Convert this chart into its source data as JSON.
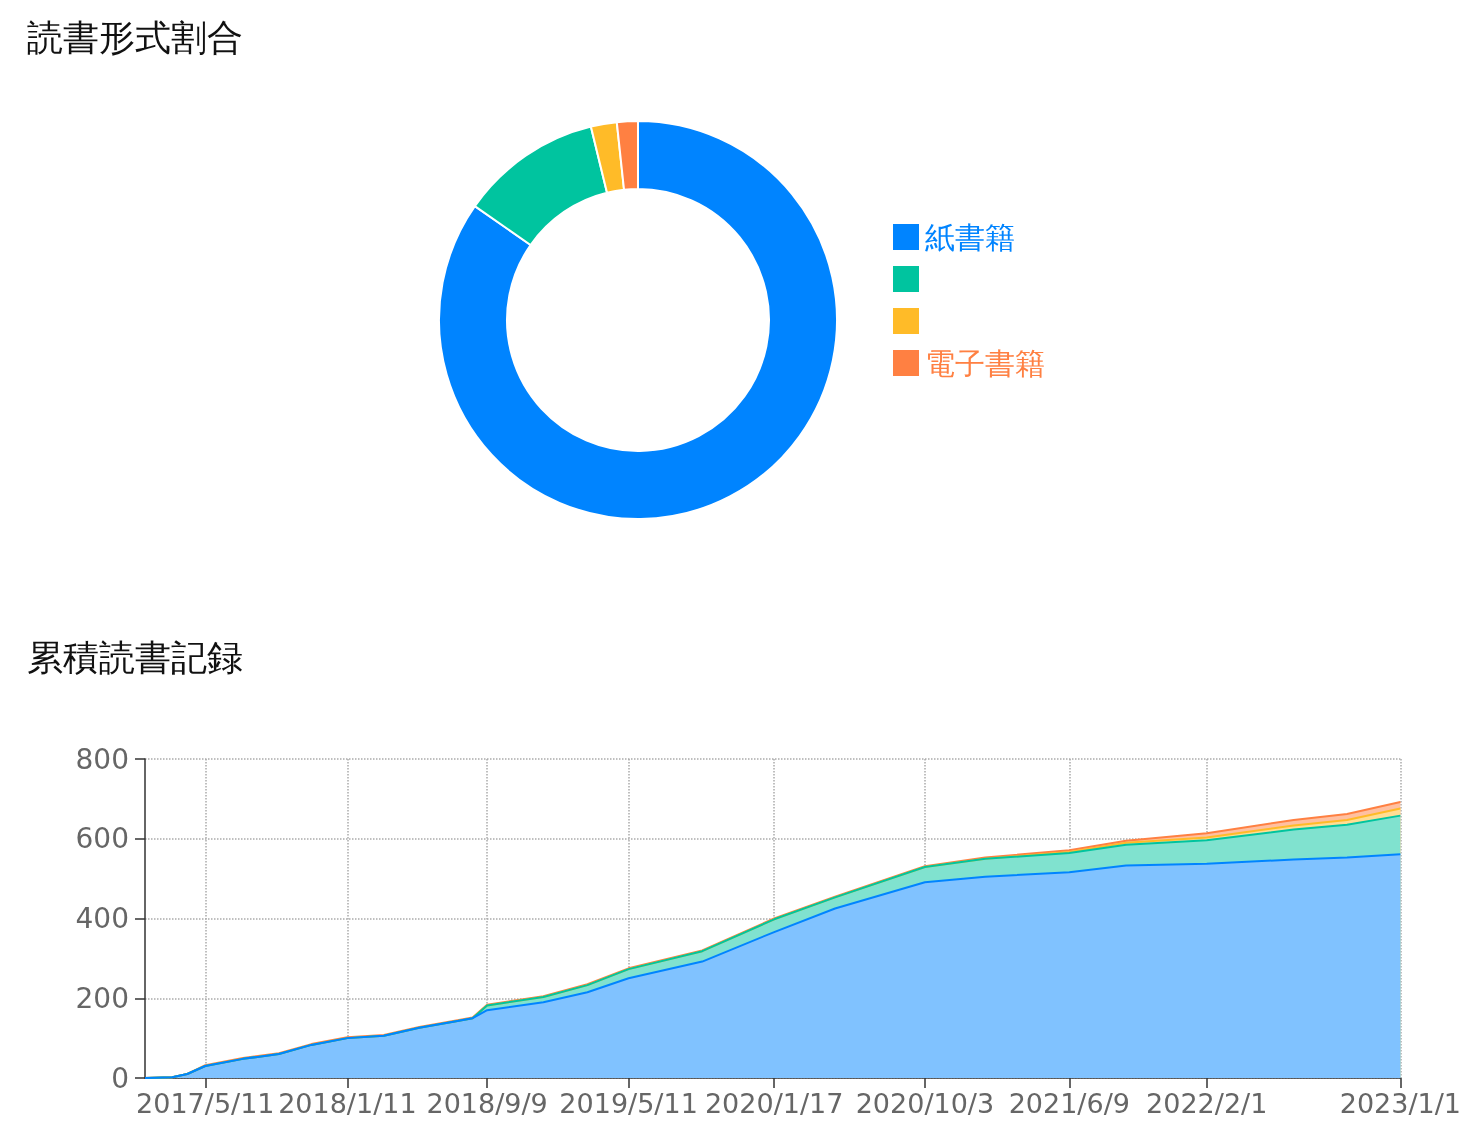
{
  "chart_data": [
    {
      "type": "donut",
      "title": "読書形式割合",
      "categories": [
        "紙書籍",
        null,
        null,
        "電子書籍"
      ],
      "values": [
        84.7,
        11.5,
        2.1,
        1.7
      ],
      "colors": [
        "#0084ff",
        "#00c49f",
        "#ffbb28",
        "#ff8042"
      ],
      "legend": "right"
    },
    {
      "type": "area",
      "title": "累積読書記録",
      "stacked": true,
      "marker": "none",
      "grid": true,
      "legend": false,
      "x": [
        "2017-01-27",
        "2017-03-15",
        "2017-04-10",
        "2017-05-11",
        "2017-07-15",
        "2017-09-15",
        "2017-11-10",
        "2018-01-11",
        "2018-03-15",
        "2018-05-15",
        "2018-07-20",
        "2018-08-15",
        "2018-09-09",
        "2018-12-15",
        "2019-03-01",
        "2019-05-11",
        "2019-09-15",
        "2020-01-17",
        "2020-05-01",
        "2020-10-03",
        "2021-01-15",
        "2021-06-09",
        "2021-09-15",
        "2022-02-01",
        "2022-07-01",
        "2022-10-01",
        "2023-01-01"
      ],
      "series": [
        {
          "color": "#0084ff",
          "values": [
            0,
            2,
            10,
            30,
            48,
            60,
            83,
            100,
            106,
            126,
            143,
            150,
            170,
            190,
            215,
            250,
            292,
            366,
            425,
            491,
            505,
            516,
            533,
            537,
            548,
            553,
            561
          ]
        },
        {
          "color": "#00c49f",
          "values": [
            0,
            0,
            0,
            0,
            0,
            0,
            0,
            0,
            0,
            0,
            0,
            0,
            12,
            13,
            18,
            23,
            26,
            32,
            28,
            38,
            45,
            48,
            52,
            59,
            75,
            82,
            97
          ]
        },
        {
          "color": "#ffbb28",
          "values": [
            0,
            0,
            0,
            0,
            0,
            0,
            0,
            0,
            0,
            0,
            0,
            0,
            0,
            0,
            0,
            0,
            0,
            0,
            0,
            0,
            0,
            3,
            5,
            7,
            10,
            12,
            18
          ]
        },
        {
          "color": "#ff8042",
          "values": [
            0,
            0,
            0,
            2,
            2,
            2,
            2,
            2,
            2,
            2,
            2,
            2,
            2,
            2,
            2,
            2,
            2,
            2,
            2,
            2,
            3,
            4,
            5,
            11,
            14,
            15,
            16
          ]
        }
      ],
      "xlim": [
        "2017-01-27",
        "2023-01-01"
      ],
      "xticks": [
        {
          "value": "2017-05-11",
          "label": "2017/5/11"
        },
        {
          "value": "2018-01-11",
          "label": "2018/1/11"
        },
        {
          "value": "2018-09-09",
          "label": "2018/9/9"
        },
        {
          "value": "2019-05-11",
          "label": "2019/5/11"
        },
        {
          "value": "2020-01-17",
          "label": "2020/1/17"
        },
        {
          "value": "2020-10-03",
          "label": "2020/10/3"
        },
        {
          "value": "2021-06-09",
          "label": "2021/6/9"
        },
        {
          "value": "2022-02-01",
          "label": "2022/2/1"
        },
        {
          "value": "2023-01-01",
          "label": "2023/1/1"
        }
      ],
      "ylim": [
        0,
        800
      ],
      "yticks": [
        0,
        200,
        400,
        600,
        800
      ]
    }
  ]
}
